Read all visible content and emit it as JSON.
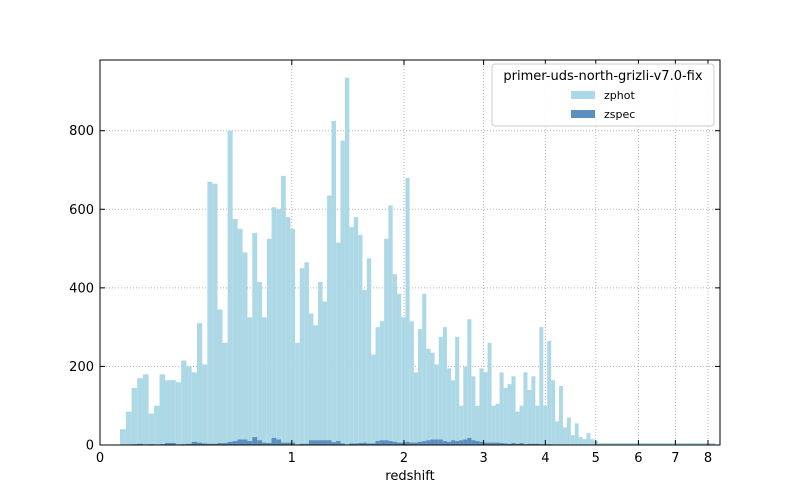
{
  "chart_data": {
    "type": "bar",
    "title": "",
    "xlabel": "redshift",
    "ylabel": "",
    "x_scale": "log(1+z)",
    "xlim": [
      0,
      8.4
    ],
    "ylim": [
      0,
      980
    ],
    "grid": true,
    "legend_placement": "top-right",
    "legend_title": "primer-uds-north-grizli-v7.0-fix",
    "x_ticks": [
      "0",
      "1",
      "2",
      "3",
      "4",
      "5",
      "6",
      "7",
      "8"
    ],
    "y_ticks": [
      "0",
      "200",
      "400",
      "600",
      "800"
    ],
    "bins_x": [
      0.075,
      0.098,
      0.121,
      0.144,
      0.168,
      0.192,
      0.216,
      0.24,
      0.265,
      0.29,
      0.315,
      0.341,
      0.367,
      0.393,
      0.42,
      0.447,
      0.474,
      0.501,
      0.529,
      0.557,
      0.586,
      0.615,
      0.644,
      0.674,
      0.704,
      0.734,
      0.765,
      0.796,
      0.827,
      0.859,
      0.891,
      0.924,
      0.957,
      0.99,
      1.024,
      1.058,
      1.093,
      1.128,
      1.163,
      1.199,
      1.235,
      1.272,
      1.309,
      1.347,
      1.385,
      1.423,
      1.462,
      1.502,
      1.542,
      1.582,
      1.623,
      1.665,
      1.707,
      1.749,
      1.792,
      1.836,
      1.88,
      1.925,
      1.97,
      2.016,
      2.062,
      2.109,
      2.156,
      2.204,
      2.252,
      2.302,
      2.351,
      2.402,
      2.453,
      2.504,
      2.557,
      2.609,
      2.663,
      2.717,
      2.772,
      2.828,
      2.884,
      2.941,
      2.999,
      3.058,
      3.117,
      3.177,
      3.238,
      3.3,
      3.362,
      3.425,
      3.49,
      3.555,
      3.62,
      3.687,
      3.755,
      3.823,
      3.893,
      3.963,
      4.034,
      4.107,
      4.18,
      4.254,
      4.329,
      4.406,
      4.483,
      4.561,
      4.64,
      4.721,
      4.802,
      4.885,
      4.969,
      5.054,
      5.14,
      5.227,
      5.316,
      5.405,
      5.496,
      5.589,
      5.682,
      5.777,
      5.873,
      5.971,
      6.07,
      6.17,
      6.272,
      6.375,
      6.479,
      6.585,
      6.693,
      6.802,
      6.913,
      7.025,
      7.139,
      7.254,
      7.371,
      7.49,
      7.61,
      7.732,
      7.856,
      7.982,
      8.109,
      8.239
    ],
    "series": [
      {
        "name": "zphot",
        "color": "#add8e6",
        "values": [
          40,
          85,
          145,
          170,
          180,
          80,
          100,
          180,
          165,
          165,
          160,
          215,
          200,
          185,
          310,
          205,
          670,
          665,
          345,
          260,
          800,
          575,
          550,
          490,
          325,
          540,
          415,
          325,
          525,
          605,
          600,
          685,
          580,
          550,
          260,
          450,
          465,
          335,
          305,
          415,
          365,
          635,
          825,
          515,
          775,
          935,
          555,
          580,
          535,
          395,
          475,
          230,
          300,
          315,
          525,
          610,
          435,
          385,
          325,
          680,
          315,
          185,
          295,
          385,
          245,
          235,
          205,
          275,
          300,
          195,
          165,
          275,
          100,
          200,
          320,
          175,
          100,
          195,
          185,
          260,
          100,
          105,
          185,
          145,
          155,
          175,
          85,
          100,
          185,
          140,
          175,
          100,
          300,
          100,
          265,
          165,
          60,
          150,
          45,
          70,
          25,
          55,
          20,
          15,
          30,
          15,
          10,
          5,
          5,
          5,
          5,
          5,
          5,
          5,
          5,
          5,
          5,
          5,
          5,
          5,
          5,
          5,
          5,
          5,
          5,
          5,
          5,
          5,
          5,
          5,
          5,
          5,
          5,
          5,
          5,
          5,
          5
        ],
        "note_removed": true
      },
      {
        "name": "zspec",
        "color": "#5b8fbd",
        "values": [
          0,
          0,
          2,
          3,
          1,
          2,
          0,
          2,
          5,
          5,
          1,
          2,
          3,
          8,
          6,
          4,
          3,
          3,
          5,
          5,
          8,
          10,
          14,
          14,
          10,
          20,
          12,
          6,
          5,
          18,
          14,
          6,
          6,
          6,
          0,
          3,
          3,
          12,
          12,
          12,
          12,
          12,
          7,
          10,
          4,
          0,
          4,
          4,
          5,
          6,
          4,
          4,
          10,
          12,
          12,
          10,
          8,
          6,
          6,
          8,
          6,
          6,
          8,
          10,
          12,
          14,
          14,
          14,
          10,
          8,
          12,
          10,
          12,
          14,
          18,
          12,
          10,
          8,
          6,
          6,
          6,
          6,
          5,
          4,
          3,
          5,
          3,
          5,
          2,
          3,
          3,
          3,
          2,
          2,
          2,
          1,
          1,
          1,
          1,
          1,
          1,
          1,
          1,
          1,
          1,
          1,
          1,
          1,
          1,
          1,
          1,
          1,
          1,
          1,
          1,
          1,
          1,
          1,
          1,
          1,
          1,
          1,
          1,
          1,
          1,
          1,
          1,
          1,
          1,
          1,
          1,
          1,
          1,
          1,
          1,
          1,
          1
        ],
        "note_removed": true
      }
    ]
  }
}
